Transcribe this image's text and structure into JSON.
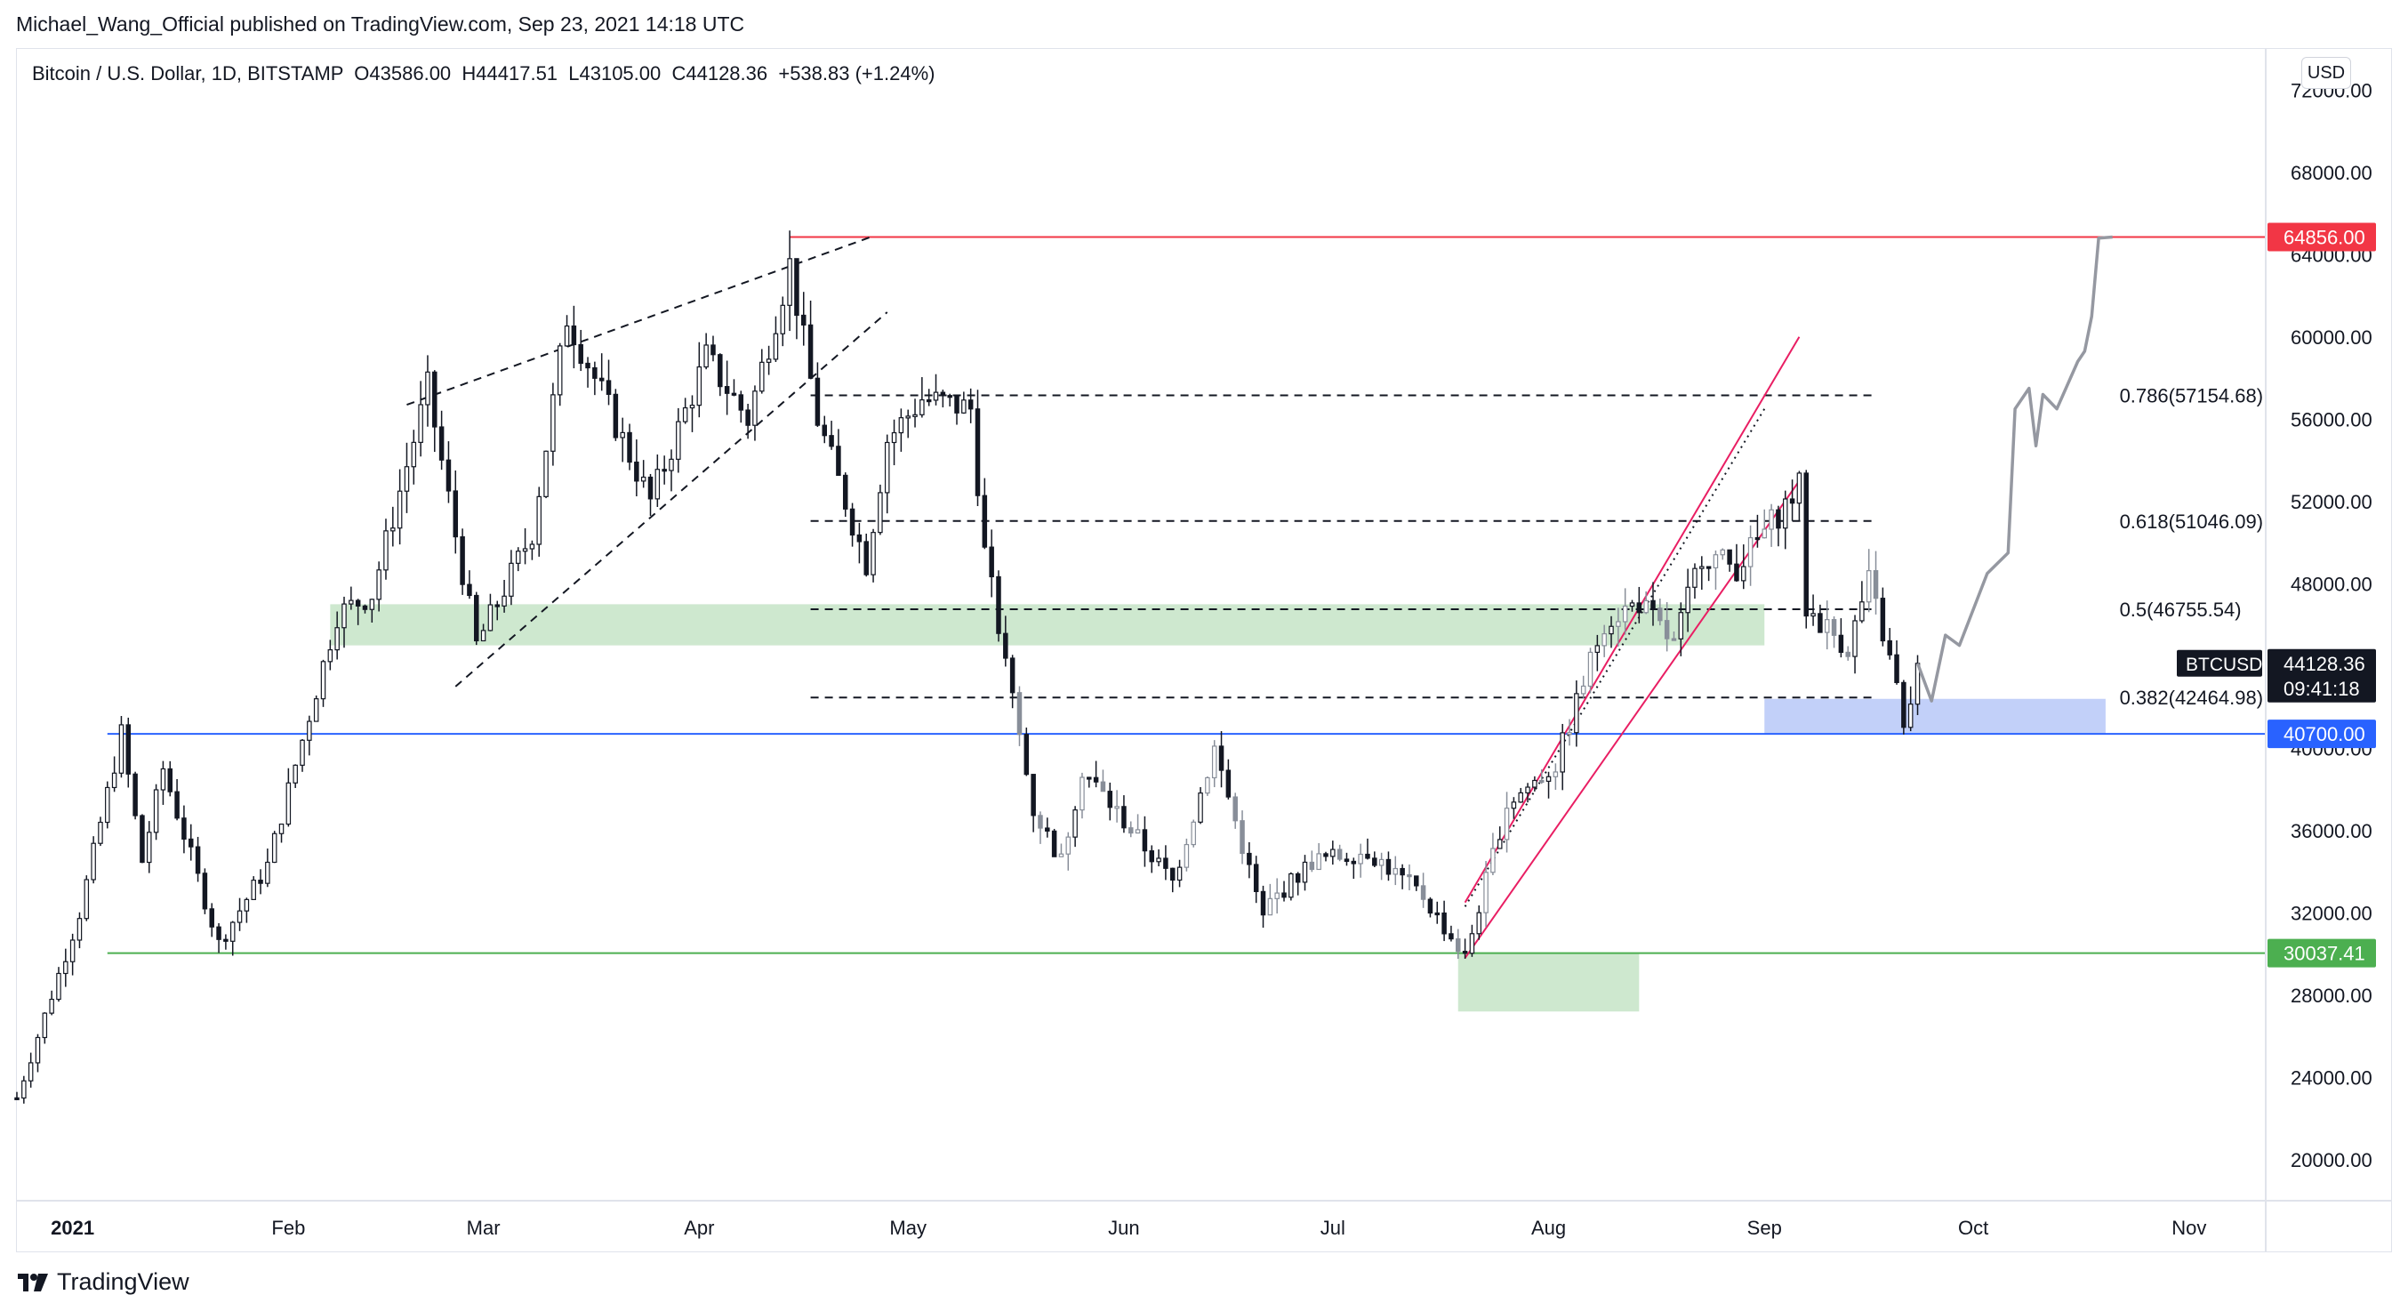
{
  "publisher": "Michael_Wang_Official published on TradingView.com, Sep 23, 2021 14:18 UTC",
  "legend": "Bitcoin / U.S. Dollar, 1D, BITSTAMP  O43586.00  H44417.51  L43105.00  C44128.36  +538.83 (+1.24%)",
  "currency_badge": "USD",
  "brand": "TradingView",
  "chart_data": {
    "type": "candlestick",
    "symbol": "BTCUSD",
    "title": "Bitcoin / U.S. Dollar, 1D, BITSTAMP",
    "ohlc_last": {
      "open": 43586.0,
      "high": 44417.51,
      "low": 43105.0,
      "close": 44128.36,
      "change": 538.83,
      "change_pct": 1.24
    },
    "ylim": [
      18000,
      74000
    ],
    "y_ticks": [
      20000,
      24000,
      28000,
      32000,
      36000,
      40000,
      44000,
      48000,
      52000,
      56000,
      60000,
      64000,
      68000,
      72000
    ],
    "x_range": [
      "2020-12-24",
      "2021-11-12"
    ],
    "x_ticks": [
      {
        "date": "2021-01-01",
        "label": "2021"
      },
      {
        "date": "2021-02-01",
        "label": "Feb"
      },
      {
        "date": "2021-03-01",
        "label": "Mar"
      },
      {
        "date": "2021-04-01",
        "label": "Apr"
      },
      {
        "date": "2021-05-01",
        "label": "May"
      },
      {
        "date": "2021-06-01",
        "label": "Jun"
      },
      {
        "date": "2021-07-01",
        "label": "Jul"
      },
      {
        "date": "2021-08-01",
        "label": "Aug"
      },
      {
        "date": "2021-09-01",
        "label": "Sep"
      },
      {
        "date": "2021-10-01",
        "label": "Oct"
      },
      {
        "date": "2021-11-01",
        "label": "Nov"
      }
    ],
    "price_path": [
      [
        "2020-12-24",
        23000
      ],
      [
        "2021-01-02",
        32000
      ],
      [
        "2021-01-08",
        40700
      ],
      [
        "2021-01-11",
        34500
      ],
      [
        "2021-01-14",
        39000
      ],
      [
        "2021-01-22",
        30500
      ],
      [
        "2021-01-29",
        34300
      ],
      [
        "2021-02-08",
        46500
      ],
      [
        "2021-02-13",
        47500
      ],
      [
        "2021-02-21",
        57500
      ],
      [
        "2021-02-28",
        45000
      ],
      [
        "2021-03-08",
        50500
      ],
      [
        "2021-03-13",
        61000
      ],
      [
        "2021-03-25",
        52000
      ],
      [
        "2021-04-02",
        59000
      ],
      [
        "2021-04-08",
        56000
      ],
      [
        "2021-04-14",
        63500
      ],
      [
        "2021-04-18",
        56000
      ],
      [
        "2021-04-25",
        49000
      ],
      [
        "2021-04-28",
        55000
      ],
      [
        "2021-05-03",
        57000
      ],
      [
        "2021-05-10",
        56500
      ],
      [
        "2021-05-12",
        49500
      ],
      [
        "2021-05-19",
        37000
      ],
      [
        "2021-05-23",
        34500
      ],
      [
        "2021-05-26",
        39000
      ],
      [
        "2021-06-08",
        33500
      ],
      [
        "2021-06-14",
        40000
      ],
      [
        "2021-06-21",
        31700
      ],
      [
        "2021-06-22",
        32500
      ],
      [
        "2021-06-28",
        34500
      ],
      [
        "2021-07-06",
        35000
      ],
      [
        "2021-07-14",
        32800
      ],
      [
        "2021-07-20",
        29800
      ],
      [
        "2021-07-26",
        37300
      ],
      [
        "2021-08-02",
        39200
      ],
      [
        "2021-08-09",
        46200
      ],
      [
        "2021-08-14",
        47100
      ],
      [
        "2021-08-19",
        45000
      ],
      [
        "2021-08-23",
        49500
      ],
      [
        "2021-08-28",
        48800
      ],
      [
        "2021-09-06",
        52700
      ],
      [
        "2021-09-07",
        46800
      ],
      [
        "2021-09-13",
        44900
      ],
      [
        "2021-09-16",
        48100
      ],
      [
        "2021-09-20",
        43000
      ],
      [
        "2021-09-21",
        40700
      ],
      [
        "2021-09-23",
        44128
      ]
    ],
    "projection": [
      [
        "2021-09-23",
        44128
      ],
      [
        "2021-09-25",
        42300
      ],
      [
        "2021-09-27",
        45500
      ],
      [
        "2021-09-29",
        45000
      ],
      [
        "2021-10-03",
        48500
      ],
      [
        "2021-10-06",
        49500
      ],
      [
        "2021-10-07",
        56500
      ],
      [
        "2021-10-09",
        57500
      ],
      [
        "2021-10-10",
        54700
      ],
      [
        "2021-10-11",
        57200
      ],
      [
        "2021-10-13",
        56500
      ],
      [
        "2021-10-16",
        58800
      ],
      [
        "2021-10-17",
        59300
      ],
      [
        "2021-10-18",
        61000
      ],
      [
        "2021-10-19",
        64800
      ],
      [
        "2021-10-21",
        64856
      ]
    ],
    "horizontal_levels": [
      {
        "value": 64856.0,
        "label": "64856.00",
        "color": "#f23645"
      },
      {
        "value": 40700.0,
        "label": "40700.00",
        "color": "#2962ff"
      },
      {
        "value": 30037.41,
        "label": "30037.41",
        "color": "#4caf50"
      }
    ],
    "fibonacci": [
      {
        "ratio": "0.786",
        "value": 57154.68,
        "label": "0.786(57154.68)"
      },
      {
        "ratio": "0.618",
        "value": 51046.09,
        "label": "0.618(51046.09)"
      },
      {
        "ratio": "0.5",
        "value": 46755.54,
        "label": "0.5(46755.54)"
      },
      {
        "ratio": "0.382",
        "value": 42464.98,
        "label": "0.382(42464.98)"
      }
    ],
    "zones": [
      {
        "from": "2021-02-07",
        "to": "2021-09-01",
        "low": 45000,
        "high": 47000,
        "color": "#a5d6a7"
      },
      {
        "from": "2021-07-19",
        "to": "2021-08-14",
        "low": 27200,
        "high": 30000,
        "color": "#a5d6a7"
      },
      {
        "from": "2021-09-01",
        "to": "2021-10-20",
        "low": 40700,
        "high": 42400,
        "color": "#90a9f4"
      }
    ],
    "last_price": {
      "label": "BTCUSD",
      "value": "44128.36",
      "countdown": "09:41:18",
      "numeric": 44128.36
    }
  }
}
